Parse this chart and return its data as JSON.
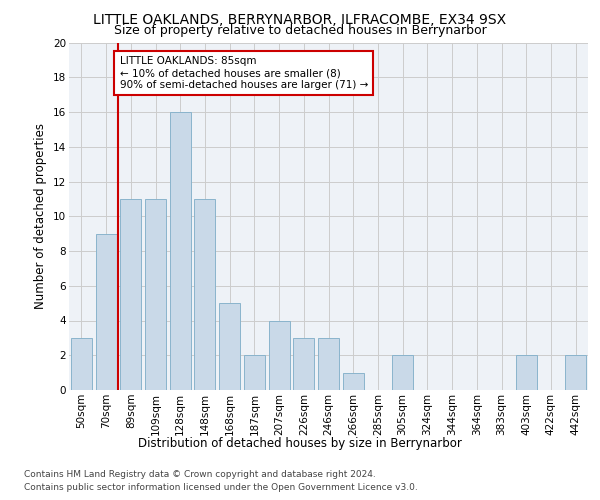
{
  "title": "LITTLE OAKLANDS, BERRYNARBOR, ILFRACOMBE, EX34 9SX",
  "subtitle": "Size of property relative to detached houses in Berrynarbor",
  "xlabel": "Distribution of detached houses by size in Berrynarbor",
  "ylabel": "Number of detached properties",
  "bar_labels": [
    "50sqm",
    "70sqm",
    "89sqm",
    "109sqm",
    "128sqm",
    "148sqm",
    "168sqm",
    "187sqm",
    "207sqm",
    "226sqm",
    "246sqm",
    "266sqm",
    "285sqm",
    "305sqm",
    "324sqm",
    "344sqm",
    "364sqm",
    "383sqm",
    "403sqm",
    "422sqm",
    "442sqm"
  ],
  "bar_values": [
    3,
    9,
    11,
    11,
    16,
    11,
    5,
    2,
    4,
    3,
    3,
    1,
    0,
    2,
    0,
    0,
    0,
    0,
    2,
    0,
    2
  ],
  "bar_color": "#c9d9e8",
  "bar_edgecolor": "#8ab4cc",
  "bar_width": 0.85,
  "ylim": [
    0,
    20
  ],
  "yticks": [
    0,
    2,
    4,
    6,
    8,
    10,
    12,
    14,
    16,
    18,
    20
  ],
  "red_line_x": 1.5,
  "annotation_title": "LITTLE OAKLANDS: 85sqm",
  "annotation_line1": "← 10% of detached houses are smaller (8)",
  "annotation_line2": "90% of semi-detached houses are larger (71) →",
  "annotation_box_color": "#ffffff",
  "annotation_box_edgecolor": "#cc0000",
  "red_line_color": "#cc0000",
  "grid_color": "#cccccc",
  "footer1": "Contains HM Land Registry data © Crown copyright and database right 2024.",
  "footer2": "Contains public sector information licensed under the Open Government Licence v3.0.",
  "title_fontsize": 10,
  "subtitle_fontsize": 9,
  "axis_label_fontsize": 8.5,
  "tick_fontsize": 7.5,
  "annotation_fontsize": 7.5,
  "footer_fontsize": 6.5,
  "bg_color": "#eef2f7"
}
